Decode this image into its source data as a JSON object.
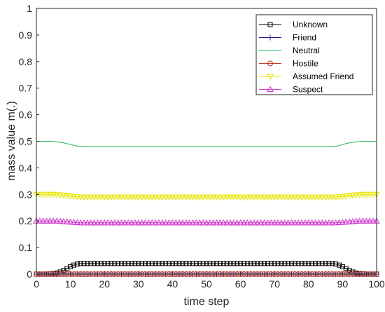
{
  "chart_data": {
    "type": "line",
    "xlabel": "time step",
    "ylabel": "mass value m(.)",
    "xlim": [
      0,
      100
    ],
    "ylim": [
      0,
      1
    ],
    "xticks": [
      "0",
      "10",
      "20",
      "30",
      "40",
      "50",
      "60",
      "70",
      "80",
      "90",
      "100"
    ],
    "yticks": [
      "0",
      "0.1",
      "0.2",
      "0.3",
      "0.4",
      "0.5",
      "0.6",
      "0.7",
      "0.8",
      "0.9",
      "1"
    ],
    "legend_position": "top-right",
    "x": [
      0,
      1,
      2,
      3,
      4,
      5,
      6,
      7,
      8,
      9,
      10,
      11,
      12,
      13,
      14,
      15,
      16,
      17,
      18,
      19,
      20,
      21,
      22,
      23,
      24,
      25,
      26,
      27,
      28,
      29,
      30,
      31,
      32,
      33,
      34,
      35,
      36,
      37,
      38,
      39,
      40,
      41,
      42,
      43,
      44,
      45,
      46,
      47,
      48,
      49,
      50,
      51,
      52,
      53,
      54,
      55,
      56,
      57,
      58,
      59,
      60,
      61,
      62,
      63,
      64,
      65,
      66,
      67,
      68,
      69,
      70,
      71,
      72,
      73,
      74,
      75,
      76,
      77,
      78,
      79,
      80,
      81,
      82,
      83,
      84,
      85,
      86,
      87,
      88,
      89,
      90,
      91,
      92,
      93,
      94,
      95,
      96,
      97,
      98,
      99,
      100
    ],
    "series": [
      {
        "name": "Unknown",
        "color": "#000000",
        "marker": "square",
        "values": [
          0.0,
          0.0,
          0.0,
          0.0,
          0.001,
          0.002,
          0.004,
          0.008,
          0.014,
          0.021,
          0.028,
          0.034,
          0.038,
          0.04,
          0.04,
          0.04,
          0.04,
          0.04,
          0.04,
          0.04,
          0.04,
          0.04,
          0.04,
          0.04,
          0.04,
          0.04,
          0.04,
          0.04,
          0.04,
          0.04,
          0.04,
          0.04,
          0.04,
          0.04,
          0.04,
          0.04,
          0.04,
          0.04,
          0.04,
          0.04,
          0.04,
          0.04,
          0.04,
          0.04,
          0.04,
          0.04,
          0.04,
          0.04,
          0.04,
          0.04,
          0.04,
          0.04,
          0.04,
          0.04,
          0.04,
          0.04,
          0.04,
          0.04,
          0.04,
          0.04,
          0.04,
          0.04,
          0.04,
          0.04,
          0.04,
          0.04,
          0.04,
          0.04,
          0.04,
          0.04,
          0.04,
          0.04,
          0.04,
          0.04,
          0.04,
          0.04,
          0.04,
          0.04,
          0.04,
          0.04,
          0.04,
          0.04,
          0.04,
          0.04,
          0.04,
          0.04,
          0.04,
          0.04,
          0.038,
          0.034,
          0.028,
          0.021,
          0.014,
          0.008,
          0.004,
          0.002,
          0.001,
          0.0,
          0.0,
          0.0,
          0.0
        ]
      },
      {
        "name": "Friend",
        "color": "#1f1f8f",
        "marker": "plus",
        "values": [
          0.0,
          0.0,
          0.0,
          0.0,
          0.0,
          0.0,
          0.0,
          0.0,
          0.0,
          0.0,
          0.0,
          0.0,
          0.0,
          0.0,
          0.0,
          0.0,
          0.0,
          0.0,
          0.0,
          0.0,
          0.0,
          0.0,
          0.0,
          0.0,
          0.0,
          0.0,
          0.0,
          0.0,
          0.0,
          0.0,
          0.0,
          0.0,
          0.0,
          0.0,
          0.0,
          0.0,
          0.0,
          0.0,
          0.0,
          0.0,
          0.0,
          0.0,
          0.0,
          0.0,
          0.0,
          0.0,
          0.0,
          0.0,
          0.0,
          0.0,
          0.0,
          0.0,
          0.0,
          0.0,
          0.0,
          0.0,
          0.0,
          0.0,
          0.0,
          0.0,
          0.0,
          0.0,
          0.0,
          0.0,
          0.0,
          0.0,
          0.0,
          0.0,
          0.0,
          0.0,
          0.0,
          0.0,
          0.0,
          0.0,
          0.0,
          0.0,
          0.0,
          0.0,
          0.0,
          0.0,
          0.0,
          0.0,
          0.0,
          0.0,
          0.0,
          0.0,
          0.0,
          0.0,
          0.0,
          0.0,
          0.0,
          0.0,
          0.0,
          0.0,
          0.0,
          0.0,
          0.0,
          0.0,
          0.0,
          0.0,
          0.0
        ]
      },
      {
        "name": "Neutral",
        "color": "#22b14c",
        "marker": "none",
        "values": [
          0.5,
          0.5,
          0.5,
          0.5,
          0.5,
          0.499,
          0.498,
          0.496,
          0.494,
          0.491,
          0.488,
          0.485,
          0.482,
          0.481,
          0.48,
          0.48,
          0.48,
          0.48,
          0.48,
          0.48,
          0.48,
          0.48,
          0.48,
          0.48,
          0.48,
          0.48,
          0.48,
          0.48,
          0.48,
          0.48,
          0.48,
          0.48,
          0.48,
          0.48,
          0.48,
          0.48,
          0.48,
          0.48,
          0.48,
          0.48,
          0.48,
          0.48,
          0.48,
          0.48,
          0.48,
          0.48,
          0.48,
          0.48,
          0.48,
          0.48,
          0.48,
          0.48,
          0.48,
          0.48,
          0.48,
          0.48,
          0.48,
          0.48,
          0.48,
          0.48,
          0.48,
          0.48,
          0.48,
          0.48,
          0.48,
          0.48,
          0.48,
          0.48,
          0.48,
          0.48,
          0.48,
          0.48,
          0.48,
          0.48,
          0.48,
          0.48,
          0.48,
          0.48,
          0.48,
          0.48,
          0.48,
          0.48,
          0.48,
          0.48,
          0.48,
          0.48,
          0.48,
          0.48,
          0.481,
          0.484,
          0.488,
          0.491,
          0.494,
          0.496,
          0.498,
          0.499,
          0.5,
          0.5,
          0.5,
          0.5,
          0.5
        ]
      },
      {
        "name": "Hostile",
        "color": "#c0392b",
        "marker": "circle",
        "values": [
          0.0,
          0.0,
          0.0,
          0.0,
          0.0,
          0.0,
          0.0,
          0.0,
          0.0,
          0.0,
          0.0,
          0.0,
          0.0,
          0.0,
          0.0,
          0.0,
          0.0,
          0.0,
          0.0,
          0.0,
          0.0,
          0.0,
          0.0,
          0.0,
          0.0,
          0.0,
          0.0,
          0.0,
          0.0,
          0.0,
          0.0,
          0.0,
          0.0,
          0.0,
          0.0,
          0.0,
          0.0,
          0.0,
          0.0,
          0.0,
          0.0,
          0.0,
          0.0,
          0.0,
          0.0,
          0.0,
          0.0,
          0.0,
          0.0,
          0.0,
          0.0,
          0.0,
          0.0,
          0.0,
          0.0,
          0.0,
          0.0,
          0.0,
          0.0,
          0.0,
          0.0,
          0.0,
          0.0,
          0.0,
          0.0,
          0.0,
          0.0,
          0.0,
          0.0,
          0.0,
          0.0,
          0.0,
          0.0,
          0.0,
          0.0,
          0.0,
          0.0,
          0.0,
          0.0,
          0.0,
          0.0,
          0.0,
          0.0,
          0.0,
          0.0,
          0.0,
          0.0,
          0.0,
          0.0,
          0.0,
          0.0,
          0.0,
          0.0,
          0.0,
          0.0,
          0.0,
          0.0,
          0.0,
          0.0,
          0.0,
          0.0
        ]
      },
      {
        "name": "Assumed Friend",
        "color": "#e6e600",
        "marker": "triangle-down",
        "values": [
          0.3,
          0.3,
          0.3,
          0.3,
          0.3,
          0.3,
          0.299,
          0.298,
          0.297,
          0.296,
          0.294,
          0.292,
          0.291,
          0.29,
          0.29,
          0.29,
          0.29,
          0.29,
          0.29,
          0.29,
          0.29,
          0.29,
          0.29,
          0.29,
          0.29,
          0.29,
          0.29,
          0.29,
          0.29,
          0.29,
          0.29,
          0.29,
          0.29,
          0.29,
          0.29,
          0.29,
          0.29,
          0.29,
          0.29,
          0.29,
          0.29,
          0.29,
          0.29,
          0.29,
          0.29,
          0.29,
          0.29,
          0.29,
          0.29,
          0.29,
          0.29,
          0.29,
          0.29,
          0.29,
          0.29,
          0.29,
          0.29,
          0.29,
          0.29,
          0.29,
          0.29,
          0.29,
          0.29,
          0.29,
          0.29,
          0.29,
          0.29,
          0.29,
          0.29,
          0.29,
          0.29,
          0.29,
          0.29,
          0.29,
          0.29,
          0.29,
          0.29,
          0.29,
          0.29,
          0.29,
          0.29,
          0.29,
          0.29,
          0.29,
          0.29,
          0.29,
          0.29,
          0.29,
          0.29,
          0.291,
          0.292,
          0.294,
          0.296,
          0.297,
          0.298,
          0.299,
          0.3,
          0.3,
          0.3,
          0.3,
          0.3
        ]
      },
      {
        "name": "Suspect",
        "color": "#cc33cc",
        "marker": "triangle-up",
        "values": [
          0.2,
          0.2,
          0.2,
          0.2,
          0.2,
          0.2,
          0.2,
          0.199,
          0.198,
          0.197,
          0.196,
          0.195,
          0.194,
          0.193,
          0.193,
          0.193,
          0.193,
          0.193,
          0.193,
          0.193,
          0.193,
          0.193,
          0.193,
          0.193,
          0.193,
          0.193,
          0.193,
          0.193,
          0.193,
          0.193,
          0.193,
          0.193,
          0.193,
          0.193,
          0.193,
          0.193,
          0.193,
          0.193,
          0.193,
          0.193,
          0.193,
          0.193,
          0.193,
          0.193,
          0.193,
          0.193,
          0.193,
          0.193,
          0.193,
          0.193,
          0.193,
          0.193,
          0.193,
          0.193,
          0.193,
          0.193,
          0.193,
          0.193,
          0.193,
          0.193,
          0.193,
          0.193,
          0.193,
          0.193,
          0.193,
          0.193,
          0.193,
          0.193,
          0.193,
          0.193,
          0.193,
          0.193,
          0.193,
          0.193,
          0.193,
          0.193,
          0.193,
          0.193,
          0.193,
          0.193,
          0.193,
          0.193,
          0.193,
          0.193,
          0.193,
          0.193,
          0.193,
          0.193,
          0.193,
          0.194,
          0.195,
          0.196,
          0.197,
          0.198,
          0.199,
          0.2,
          0.2,
          0.2,
          0.2,
          0.2,
          0.2
        ]
      }
    ]
  }
}
